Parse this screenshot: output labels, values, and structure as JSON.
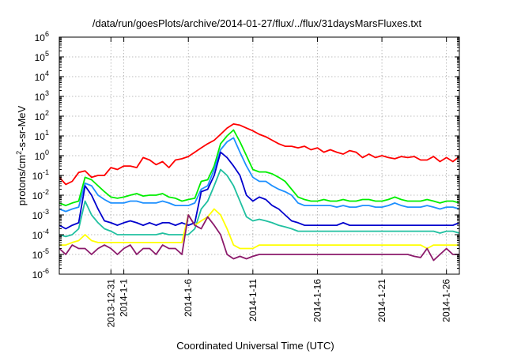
{
  "chart_data": {
    "type": "line",
    "title": "/data/run/goesPlots/archive/2014-01-27/flux/../flux/31daysMarsFluxes.txt",
    "xlabel": "Coordinated Universal Time (UTC)",
    "ylabel": "protons/cm²-s-sr-MeV",
    "ylabel_parts": {
      "pre": "protons/cm",
      "sup": "2",
      "post": "-s-sr-MeV"
    },
    "yscale": "log",
    "ylim": [
      1e-06,
      1000000.0
    ],
    "xlim": [
      27.0,
      58.0
    ],
    "x_unit": "day number counted from 2013-12-01 (day 31 = 2013-12-31)",
    "grid": true,
    "y_ticks": [
      {
        "value": 1e-06,
        "base": "10",
        "exp": "-6"
      },
      {
        "value": 1e-05,
        "base": "10",
        "exp": "-5"
      },
      {
        "value": 0.0001,
        "base": "10",
        "exp": "-4"
      },
      {
        "value": 0.001,
        "base": "10",
        "exp": "-3"
      },
      {
        "value": 0.01,
        "base": "10",
        "exp": "-2"
      },
      {
        "value": 0.1,
        "base": "10",
        "exp": "-1"
      },
      {
        "value": 1.0,
        "base": "10",
        "exp": "0"
      },
      {
        "value": 10.0,
        "base": "10",
        "exp": "1"
      },
      {
        "value": 100.0,
        "base": "10",
        "exp": "2"
      },
      {
        "value": 1000.0,
        "base": "10",
        "exp": "3"
      },
      {
        "value": 10000.0,
        "base": "10",
        "exp": "4"
      },
      {
        "value": 100000.0,
        "base": "10",
        "exp": "5"
      },
      {
        "value": 1000000.0,
        "base": "10",
        "exp": "6"
      }
    ],
    "x_ticks": [
      {
        "value": 31,
        "label": "2013-12-31"
      },
      {
        "value": 32,
        "label": "2014-1-1"
      },
      {
        "value": 37,
        "label": "2014-1-6"
      },
      {
        "value": 42,
        "label": "2014-1-11"
      },
      {
        "value": 47,
        "label": "2014-1-16"
      },
      {
        "value": 52,
        "label": "2014-1-21"
      },
      {
        "value": 57,
        "label": "2014-1-26"
      }
    ],
    "series": [
      {
        "name": "red",
        "color": "#ff0000",
        "x": [
          27.0,
          27.5,
          28.0,
          28.5,
          29.0,
          29.5,
          30.0,
          30.5,
          31.0,
          31.5,
          32.0,
          32.5,
          33.0,
          33.5,
          34.0,
          34.5,
          35.0,
          35.5,
          36.0,
          36.5,
          37.0,
          37.5,
          38.0,
          38.5,
          39.0,
          39.5,
          40.0,
          40.5,
          41.0,
          41.5,
          42.0,
          42.5,
          43.0,
          43.5,
          44.0,
          44.5,
          45.0,
          45.5,
          46.0,
          46.5,
          47.0,
          47.5,
          48.0,
          48.5,
          49.0,
          49.5,
          50.0,
          50.5,
          51.0,
          51.5,
          52.0,
          52.5,
          53.0,
          53.5,
          54.0,
          54.5,
          55.0,
          55.5,
          56.0,
          56.5,
          57.0,
          57.5,
          58.0
        ],
        "values": [
          0.08,
          0.035,
          0.05,
          0.14,
          0.17,
          0.08,
          0.1,
          0.1,
          0.25,
          0.2,
          0.3,
          0.3,
          0.25,
          0.8,
          0.6,
          0.35,
          0.5,
          0.25,
          0.6,
          0.7,
          0.9,
          1.5,
          2.5,
          4,
          6,
          12,
          25,
          40,
          35,
          25,
          18,
          12,
          9,
          6,
          4,
          3,
          3,
          2.5,
          3,
          2,
          2.5,
          1.5,
          2,
          1.5,
          1.2,
          1.8,
          1.5,
          0.8,
          1.2,
          0.8,
          1.0,
          0.8,
          0.7,
          0.9,
          0.8,
          0.9,
          0.6,
          0.6,
          0.9,
          0.5,
          0.8,
          0.5,
          0.9
        ]
      },
      {
        "name": "green",
        "color": "#00ee00",
        "x": [
          27.0,
          27.5,
          28.0,
          28.5,
          29.0,
          29.5,
          30.0,
          30.5,
          31.0,
          31.5,
          32.0,
          32.5,
          33.0,
          33.5,
          34.0,
          34.5,
          35.0,
          35.5,
          36.0,
          36.5,
          37.0,
          37.5,
          38.0,
          38.5,
          39.0,
          39.5,
          40.0,
          40.5,
          41.0,
          41.5,
          42.0,
          42.5,
          43.0,
          43.5,
          44.0,
          44.5,
          45.0,
          45.5,
          46.0,
          46.5,
          47.0,
          47.5,
          48.0,
          48.5,
          49.0,
          49.5,
          50.0,
          50.5,
          51.0,
          51.5,
          52.0,
          52.5,
          53.0,
          53.5,
          54.0,
          54.5,
          55.0,
          55.5,
          56.0,
          56.5,
          57.0,
          57.5,
          58.0
        ],
        "values": [
          0.004,
          0.003,
          0.004,
          0.005,
          0.08,
          0.06,
          0.03,
          0.015,
          0.008,
          0.007,
          0.008,
          0.01,
          0.012,
          0.009,
          0.01,
          0.01,
          0.012,
          0.008,
          0.007,
          0.005,
          0.006,
          0.007,
          0.05,
          0.06,
          0.3,
          4,
          10,
          20,
          5,
          1.0,
          0.2,
          0.15,
          0.15,
          0.12,
          0.08,
          0.05,
          0.02,
          0.008,
          0.006,
          0.005,
          0.005,
          0.006,
          0.005,
          0.005,
          0.006,
          0.005,
          0.005,
          0.006,
          0.006,
          0.005,
          0.005,
          0.006,
          0.008,
          0.006,
          0.005,
          0.005,
          0.005,
          0.006,
          0.005,
          0.004,
          0.005,
          0.005,
          0.004
        ]
      },
      {
        "name": "blue",
        "color": "#1e90ff",
        "x": [
          27.0,
          27.5,
          28.0,
          28.5,
          29.0,
          29.5,
          30.0,
          30.5,
          31.0,
          31.5,
          32.0,
          32.5,
          33.0,
          33.5,
          34.0,
          34.5,
          35.0,
          35.5,
          36.0,
          36.5,
          37.0,
          37.5,
          38.0,
          38.5,
          39.0,
          39.5,
          40.0,
          40.5,
          41.0,
          41.5,
          42.0,
          42.5,
          43.0,
          43.5,
          44.0,
          44.5,
          45.0,
          45.5,
          46.0,
          46.5,
          47.0,
          47.5,
          48.0,
          48.5,
          49.0,
          49.5,
          50.0,
          50.5,
          51.0,
          51.5,
          52.0,
          52.5,
          53.0,
          53.5,
          54.0,
          54.5,
          55.0,
          55.5,
          56.0,
          56.5,
          57.0,
          57.5,
          58.0
        ],
        "values": [
          0.002,
          0.0015,
          0.002,
          0.0025,
          0.04,
          0.03,
          0.01,
          0.006,
          0.004,
          0.004,
          0.004,
          0.005,
          0.005,
          0.004,
          0.004,
          0.004,
          0.005,
          0.004,
          0.003,
          0.003,
          0.003,
          0.004,
          0.02,
          0.03,
          0.2,
          2,
          5,
          8,
          1.5,
          0.3,
          0.08,
          0.05,
          0.05,
          0.03,
          0.02,
          0.015,
          0.01,
          0.004,
          0.003,
          0.003,
          0.003,
          0.003,
          0.003,
          0.0025,
          0.003,
          0.0025,
          0.0025,
          0.003,
          0.003,
          0.0025,
          0.0025,
          0.003,
          0.004,
          0.003,
          0.0025,
          0.0025,
          0.0025,
          0.003,
          0.0025,
          0.002,
          0.0025,
          0.0025,
          0.002
        ]
      },
      {
        "name": "navy",
        "color": "#0000cd",
        "x": [
          27.0,
          27.5,
          28.0,
          28.5,
          29.0,
          29.5,
          30.0,
          30.5,
          31.0,
          31.5,
          32.0,
          32.5,
          33.0,
          33.5,
          34.0,
          34.5,
          35.0,
          35.5,
          36.0,
          36.5,
          37.0,
          37.5,
          38.0,
          38.5,
          39.0,
          39.5,
          40.0,
          40.5,
          41.0,
          41.5,
          42.0,
          42.5,
          43.0,
          43.5,
          44.0,
          44.5,
          45.0,
          45.5,
          46.0,
          46.5,
          47.0,
          47.5,
          48.0,
          48.5,
          49.0,
          49.5,
          50.0,
          50.5,
          51.0,
          51.5,
          52.0,
          52.5,
          53.0,
          53.5,
          54.0,
          54.5,
          55.0,
          55.5,
          56.0,
          56.5,
          57.0,
          57.5,
          58.0
        ],
        "values": [
          0.0003,
          0.0002,
          0.0003,
          0.0004,
          0.03,
          0.01,
          0.002,
          0.0005,
          0.0004,
          0.0003,
          0.0004,
          0.0005,
          0.0004,
          0.0003,
          0.0004,
          0.0003,
          0.0004,
          0.0004,
          0.0003,
          0.0004,
          0.0003,
          0.0004,
          0.015,
          0.02,
          0.1,
          1.5,
          0.8,
          0.3,
          0.1,
          0.01,
          0.005,
          0.008,
          0.006,
          0.003,
          0.002,
          0.001,
          0.0005,
          0.0004,
          0.0003,
          0.0003,
          0.0003,
          0.0003,
          0.0003,
          0.0003,
          0.0004,
          0.0003,
          0.0003,
          0.0003,
          0.0003,
          0.0003,
          0.0003,
          0.0003,
          0.0003,
          0.0003,
          0.0003,
          0.0003,
          0.0003,
          0.0003,
          0.0003,
          0.0003,
          0.0003,
          0.0003,
          0.0004
        ]
      },
      {
        "name": "teal",
        "color": "#20c0a0",
        "x": [
          27.0,
          27.5,
          28.0,
          28.5,
          29.0,
          29.5,
          30.0,
          30.5,
          31.0,
          31.5,
          32.0,
          32.5,
          33.0,
          33.5,
          34.0,
          34.5,
          35.0,
          35.5,
          36.0,
          36.5,
          37.0,
          37.5,
          38.0,
          38.5,
          39.0,
          39.5,
          40.0,
          40.5,
          41.0,
          41.5,
          42.0,
          42.5,
          43.0,
          43.5,
          44.0,
          44.5,
          45.0,
          45.5,
          46.0,
          46.5,
          47.0,
          47.5,
          48.0,
          48.5,
          49.0,
          49.5,
          50.0,
          50.5,
          51.0,
          51.5,
          52.0,
          52.5,
          53.0,
          53.5,
          54.0,
          54.5,
          55.0,
          55.5,
          56.0,
          56.5,
          57.0,
          57.5,
          58.0
        ],
        "values": [
          0.0001,
          8e-05,
          0.0001,
          0.0002,
          0.005,
          0.001,
          0.0004,
          0.0002,
          0.00015,
          0.0001,
          0.0001,
          0.0001,
          0.0001,
          0.0001,
          0.0001,
          0.0001,
          0.00012,
          0.0001,
          0.0001,
          0.0001,
          0.0001,
          0.0002,
          0.002,
          0.005,
          0.03,
          0.2,
          0.1,
          0.03,
          0.005,
          0.0008,
          0.0005,
          0.0006,
          0.0005,
          0.0004,
          0.0003,
          0.00025,
          0.0002,
          0.00015,
          0.00015,
          0.00015,
          0.00015,
          0.00015,
          0.00015,
          0.00015,
          0.00015,
          0.00015,
          0.00015,
          0.00015,
          0.00015,
          0.00015,
          0.00015,
          0.00015,
          0.00015,
          0.00015,
          0.00015,
          0.00015,
          0.00015,
          0.00015,
          0.00015,
          0.00012,
          0.00015,
          0.00015,
          0.00012
        ]
      },
      {
        "name": "yellow",
        "color": "#ffff00",
        "x": [
          27.0,
          27.5,
          28.0,
          28.5,
          29.0,
          29.5,
          30.0,
          30.5,
          31.0,
          31.5,
          32.0,
          32.5,
          33.0,
          33.5,
          34.0,
          34.5,
          35.0,
          35.5,
          36.0,
          36.5,
          37.0,
          37.5,
          38.0,
          38.5,
          39.0,
          39.5,
          40.0,
          40.5,
          41.0,
          41.5,
          42.0,
          42.5,
          43.0,
          43.5,
          44.0,
          44.5,
          45.0,
          45.5,
          46.0,
          46.5,
          47.0,
          47.5,
          48.0,
          48.5,
          49.0,
          49.5,
          50.0,
          50.5,
          51.0,
          51.5,
          52.0,
          52.5,
          53.0,
          53.5,
          54.0,
          54.5,
          55.0,
          55.5,
          56.0,
          56.5,
          57.0,
          57.5,
          58.0
        ],
        "values": [
          3e-05,
          3e-05,
          4e-05,
          5e-05,
          0.0001,
          5e-05,
          4e-05,
          4e-05,
          4e-05,
          4e-05,
          4e-05,
          4e-05,
          4e-05,
          4e-05,
          4e-05,
          4e-05,
          4e-05,
          4e-05,
          4e-05,
          4e-05,
          0.001,
          0.0003,
          0.0005,
          0.0008,
          0.002,
          0.001,
          0.0002,
          3e-05,
          2e-05,
          2e-05,
          2e-05,
          3e-05,
          3e-05,
          3e-05,
          3e-05,
          3e-05,
          3e-05,
          3e-05,
          3e-05,
          3e-05,
          3e-05,
          3e-05,
          3e-05,
          3e-05,
          3e-05,
          3e-05,
          3e-05,
          3e-05,
          3e-05,
          3e-05,
          3e-05,
          3e-05,
          3e-05,
          3e-05,
          3e-05,
          3e-05,
          3e-05,
          2e-05,
          3e-05,
          3e-05,
          3e-05,
          3e-05,
          3e-05
        ]
      },
      {
        "name": "purple",
        "color": "#8b1a6b",
        "x": [
          27.0,
          27.5,
          28.0,
          28.5,
          29.0,
          29.5,
          30.0,
          30.5,
          31.0,
          31.5,
          32.0,
          32.5,
          33.0,
          33.5,
          34.0,
          34.5,
          35.0,
          35.5,
          36.0,
          36.5,
          37.0,
          37.5,
          38.0,
          38.5,
          39.0,
          39.5,
          40.0,
          40.5,
          41.0,
          41.5,
          42.0,
          42.5,
          43.0,
          43.5,
          44.0,
          44.5,
          45.0,
          45.5,
          46.0,
          46.5,
          47.0,
          47.5,
          48.0,
          48.5,
          49.0,
          49.5,
          50.0,
          50.5,
          51.0,
          51.5,
          52.0,
          52.5,
          53.0,
          53.5,
          54.0,
          54.5,
          55.0,
          55.5,
          56.0,
          56.5,
          57.0,
          57.5,
          58.0
        ],
        "values": [
          2e-05,
          1e-05,
          3e-05,
          2e-05,
          2e-05,
          1e-05,
          2e-05,
          3e-05,
          2e-05,
          1e-05,
          2e-05,
          3e-05,
          1e-05,
          2e-05,
          2e-05,
          1e-05,
          3e-05,
          2e-05,
          2e-05,
          1e-05,
          0.001,
          0.0003,
          0.0002,
          0.0008,
          0.0003,
          0.0001,
          1e-05,
          6e-06,
          8e-06,
          6e-06,
          8e-06,
          1e-05,
          1e-05,
          1e-05,
          1e-05,
          1e-05,
          1e-05,
          1e-05,
          1e-05,
          1e-05,
          1e-05,
          1e-05,
          1e-05,
          1e-05,
          1e-05,
          1e-05,
          1e-05,
          1e-05,
          1e-05,
          1e-05,
          1e-05,
          1e-05,
          1e-05,
          1e-05,
          1e-05,
          8e-06,
          7e-06,
          2e-05,
          5e-06,
          1e-05,
          2e-05,
          1e-05,
          1e-05
        ]
      }
    ]
  }
}
